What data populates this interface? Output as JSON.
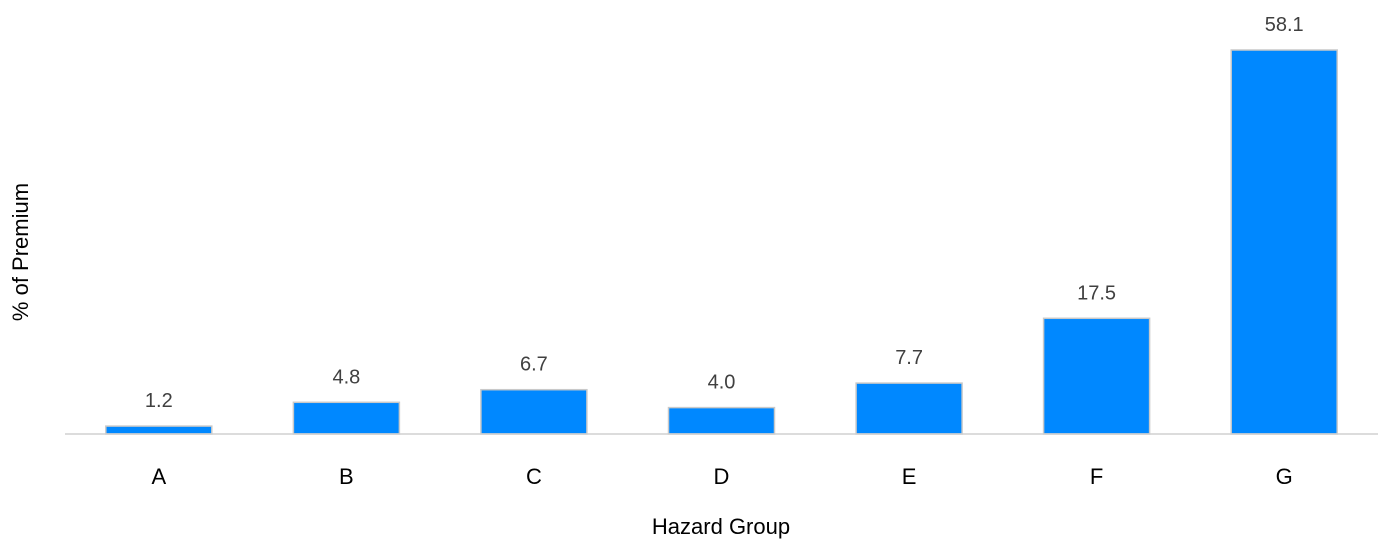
{
  "chart_data": {
    "type": "bar",
    "categories": [
      "A",
      "B",
      "C",
      "D",
      "E",
      "F",
      "G"
    ],
    "values": [
      1.2,
      4.8,
      6.7,
      4.0,
      7.7,
      17.5,
      58.1
    ],
    "value_labels": [
      "1.2",
      "4.8",
      "6.7",
      "4.0",
      "7.7",
      "17.5",
      "58.1"
    ],
    "title": "",
    "xlabel": "Hazard Group",
    "ylabel": "% of Premium",
    "ylim": [
      0,
      65
    ],
    "grid": false,
    "legend": "none",
    "bar_color": "#0088FF",
    "bar_border_color": "#C9C9C9"
  }
}
